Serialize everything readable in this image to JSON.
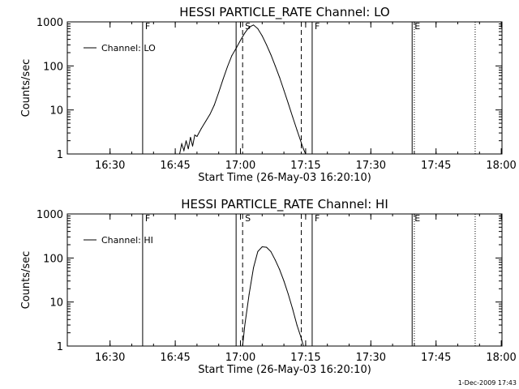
{
  "stamp": "1-Dec-2009 17:43",
  "chart_data": [
    {
      "type": "line",
      "title": "HESSI PARTICLE_RATE Channel: LO",
      "xlabel": "Start Time (26-May-03 16:20:10)",
      "ylabel": "Counts/sec",
      "y_scale": "log",
      "ylim": [
        1,
        1000
      ],
      "xlim_minutes_after_start": [
        0,
        100
      ],
      "x_tick_labels": [
        "16:30",
        "16:45",
        "17:00",
        "17:15",
        "17:30",
        "17:45",
        "18:00"
      ],
      "y_tick_labels": [
        "1",
        "10",
        "100",
        "1000"
      ],
      "legend": {
        "entry": "Channel: LO",
        "placement": "top-left"
      },
      "series": [
        {
          "name": "Channel: LO",
          "x": [
            "16:46:00",
            "16:46:30",
            "16:47:00",
            "16:47:30",
            "16:48:00",
            "16:48:30",
            "16:49:00",
            "16:49:30",
            "16:50:00",
            "16:51:00",
            "16:52:00",
            "16:53:00",
            "16:54:00",
            "16:55:00",
            "16:56:00",
            "16:57:00",
            "16:58:00",
            "16:59:00",
            "17:00:00",
            "17:01:00",
            "17:02:00",
            "17:03:00",
            "17:04:00",
            "17:05:00",
            "17:06:00",
            "17:07:00",
            "17:08:00",
            "17:09:00",
            "17:10:00",
            "17:11:00",
            "17:12:00",
            "17:13:00",
            "17:14:00",
            "17:14:30",
            "17:15:00"
          ],
          "y": [
            1,
            1.7,
            1.2,
            2.0,
            1.3,
            2.4,
            1.5,
            2.7,
            2.5,
            3.8,
            5.5,
            8,
            13,
            25,
            50,
            95,
            170,
            250,
            380,
            560,
            760,
            850,
            700,
            480,
            300,
            180,
            100,
            55,
            28,
            14,
            7,
            3.5,
            1.8,
            1.3,
            1
          ]
        }
      ],
      "markers": [
        {
          "time": "16:37:30",
          "label": "F",
          "style": "solid"
        },
        {
          "time": "16:59:00",
          "label": "",
          "style": "solid"
        },
        {
          "time": "17:00:30",
          "label": "S",
          "style": "dashed"
        },
        {
          "time": "17:14:00",
          "label": "",
          "style": "dashed"
        },
        {
          "time": "17:16:30",
          "label": "F",
          "style": "solid"
        },
        {
          "time": "17:39:30",
          "label": "E",
          "style": "solid"
        },
        {
          "time": "17:40:00",
          "label": "",
          "style": "dotted"
        },
        {
          "time": "17:54:00",
          "label": "",
          "style": "dotted"
        }
      ]
    },
    {
      "type": "line",
      "title": "HESSI PARTICLE_RATE Channel: HI",
      "xlabel": "Start Time (26-May-03 16:20:10)",
      "ylabel": "Counts/sec",
      "y_scale": "log",
      "ylim": [
        1,
        1000
      ],
      "xlim_minutes_after_start": [
        0,
        100
      ],
      "x_tick_labels": [
        "16:30",
        "16:45",
        "17:00",
        "17:15",
        "17:30",
        "17:45",
        "18:00"
      ],
      "y_tick_labels": [
        "1",
        "10",
        "100",
        "1000"
      ],
      "legend": {
        "entry": "Channel: HI",
        "placement": "top-left"
      },
      "series": [
        {
          "name": "Channel: HI",
          "x": [
            "17:00:30",
            "17:01:00",
            "17:02:00",
            "17:03:00",
            "17:04:00",
            "17:05:00",
            "17:06:00",
            "17:07:00",
            "17:08:00",
            "17:09:00",
            "17:10:00",
            "17:11:00",
            "17:12:00",
            "17:13:00",
            "17:14:00",
            "17:14:30"
          ],
          "y": [
            1,
            3,
            15,
            60,
            140,
            180,
            175,
            140,
            90,
            55,
            30,
            15,
            7,
            3,
            1.5,
            1
          ]
        }
      ],
      "markers": [
        {
          "time": "16:37:30",
          "label": "F",
          "style": "solid"
        },
        {
          "time": "16:59:00",
          "label": "",
          "style": "solid"
        },
        {
          "time": "17:00:30",
          "label": "S",
          "style": "dashed"
        },
        {
          "time": "17:14:00",
          "label": "",
          "style": "dashed"
        },
        {
          "time": "17:16:30",
          "label": "F",
          "style": "solid"
        },
        {
          "time": "17:39:30",
          "label": "E",
          "style": "solid"
        },
        {
          "time": "17:40:00",
          "label": "",
          "style": "dotted"
        },
        {
          "time": "17:54:00",
          "label": "",
          "style": "dotted"
        }
      ]
    }
  ]
}
